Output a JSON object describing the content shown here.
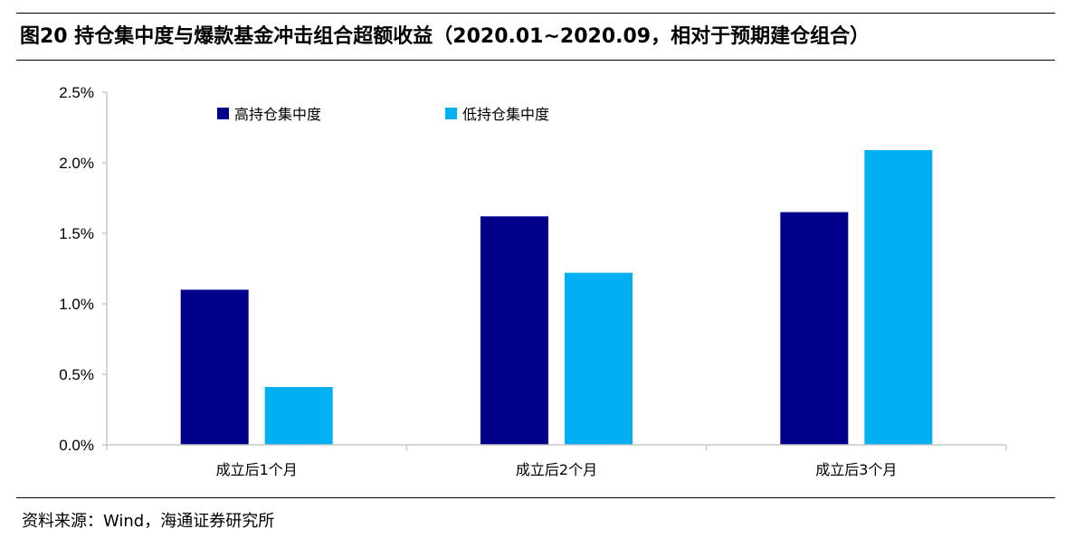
{
  "figure": {
    "title": "图20 持仓集中度与爆款基金冲击组合超额收益（2020.01~2020.09，相对于预期建仓组合）",
    "source": "资料来源：Wind，海通证券研究所"
  },
  "chart_data": {
    "type": "bar",
    "categories": [
      "成立后1个月",
      "成立后2个月",
      "成立后3个月"
    ],
    "series": [
      {
        "name": "高持仓集中度",
        "color": "#00008B",
        "values": [
          0.011,
          0.0162,
          0.0165
        ]
      },
      {
        "name": "低持仓集中度",
        "color": "#00B0F0",
        "values": [
          0.0041,
          0.0122,
          0.0209
        ]
      }
    ],
    "ylim": [
      0,
      0.025
    ],
    "yticks": [
      0,
      0.005,
      0.01,
      0.015,
      0.02,
      0.025
    ],
    "ytick_labels": [
      "0.0%",
      "0.5%",
      "1.0%",
      "1.5%",
      "2.0%",
      "2.5%"
    ],
    "xlabel": "",
    "ylabel": "",
    "grid": false,
    "legend_position": "top-left"
  }
}
